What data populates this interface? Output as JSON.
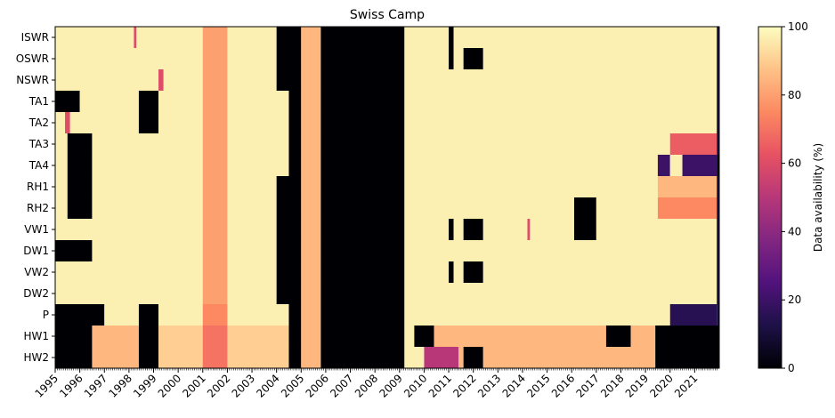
{
  "chart_data": {
    "type": "heatmap",
    "title": "Swiss Camp",
    "xlabel": "",
    "ylabel": "",
    "variables": [
      "ISWR",
      "OSWR",
      "NSWR",
      "TA1",
      "TA2",
      "TA3",
      "TA4",
      "RH1",
      "RH2",
      "VW1",
      "DW1",
      "VW2",
      "DW2",
      "P",
      "HW1",
      "HW2"
    ],
    "x_tick_labels": [
      "1995",
      "1996",
      "1997",
      "1998",
      "1999",
      "2000",
      "2001",
      "2002",
      "2003",
      "2004",
      "2005",
      "2006",
      "2007",
      "2008",
      "2009",
      "2010",
      "2011",
      "2012",
      "2013",
      "2014",
      "2015",
      "2016",
      "2017",
      "2018",
      "2019",
      "2020",
      "2021"
    ],
    "time_start": "1995-01",
    "time_end": "2021-12",
    "colorbar": {
      "label": "Data availability (%)",
      "range": [
        0,
        100
      ],
      "ticks": [
        "0",
        "20",
        "40",
        "60",
        "80",
        "100"
      ],
      "colormap": "magma",
      "colors": [
        "#000004",
        "#1d1147",
        "#51127c",
        "#822681",
        "#b73779",
        "#e75263",
        "#fc8961",
        "#fec287",
        "#fcfdbf"
      ]
    },
    "series": [
      {
        "name": "ISWR",
        "segments": [
          [
            1995.0,
            2004.0,
            97
          ],
          [
            1998.2,
            1998.3,
            60
          ],
          [
            2001.0,
            2002.0,
            80
          ],
          [
            2004.0,
            2005.0,
            0
          ],
          [
            2005.0,
            2005.8,
            85
          ],
          [
            2005.8,
            2009.2,
            0
          ],
          [
            2009.2,
            2011.0,
            97
          ],
          [
            2011.0,
            2011.2,
            0
          ],
          [
            2011.2,
            2021.9,
            97
          ],
          [
            2021.9,
            2022.0,
            10
          ]
        ]
      },
      {
        "name": "OSWR",
        "segments": [
          [
            1995.0,
            2004.0,
            97
          ],
          [
            2001.0,
            2002.0,
            80
          ],
          [
            2004.0,
            2005.0,
            0
          ],
          [
            2005.0,
            2005.8,
            85
          ],
          [
            2005.8,
            2009.2,
            0
          ],
          [
            2009.2,
            2011.0,
            97
          ],
          [
            2011.0,
            2011.2,
            0
          ],
          [
            2011.2,
            2011.6,
            97
          ],
          [
            2011.6,
            2012.4,
            0
          ],
          [
            2012.4,
            2021.9,
            97
          ],
          [
            2021.9,
            2022.0,
            10
          ]
        ]
      },
      {
        "name": "NSWR",
        "segments": [
          [
            1995.0,
            2004.0,
            97
          ],
          [
            1999.2,
            1999.4,
            60
          ],
          [
            2001.0,
            2002.0,
            80
          ],
          [
            2004.0,
            2005.0,
            0
          ],
          [
            2005.0,
            2005.8,
            85
          ],
          [
            2005.8,
            2009.2,
            0
          ],
          [
            2009.2,
            2021.9,
            97
          ],
          [
            2021.9,
            2022.0,
            10
          ]
        ]
      },
      {
        "name": "TA1",
        "segments": [
          [
            1995.0,
            1996.0,
            0
          ],
          [
            1996.0,
            1998.4,
            97
          ],
          [
            1998.4,
            1999.2,
            0
          ],
          [
            1999.2,
            2004.5,
            97
          ],
          [
            2001.0,
            2002.0,
            80
          ],
          [
            2004.5,
            2005.0,
            0
          ],
          [
            2005.0,
            2005.8,
            85
          ],
          [
            2005.8,
            2009.2,
            0
          ],
          [
            2009.2,
            2021.9,
            97
          ],
          [
            2021.9,
            2022.0,
            10
          ]
        ]
      },
      {
        "name": "TA2",
        "segments": [
          [
            1995.0,
            1998.4,
            97
          ],
          [
            1995.4,
            1995.6,
            60
          ],
          [
            1998.4,
            1999.2,
            0
          ],
          [
            1999.2,
            2004.5,
            97
          ],
          [
            2001.0,
            2002.0,
            80
          ],
          [
            2004.5,
            2005.0,
            0
          ],
          [
            2005.0,
            2005.8,
            85
          ],
          [
            2005.8,
            2009.2,
            0
          ],
          [
            2009.2,
            2021.9,
            97
          ],
          [
            2021.9,
            2022.0,
            10
          ]
        ]
      },
      {
        "name": "TA3",
        "segments": [
          [
            1995.0,
            1995.5,
            97
          ],
          [
            1995.5,
            1996.5,
            0
          ],
          [
            1996.5,
            2004.5,
            97
          ],
          [
            2001.0,
            2002.0,
            80
          ],
          [
            2004.5,
            2005.0,
            0
          ],
          [
            2005.0,
            2005.8,
            85
          ],
          [
            2005.8,
            2009.2,
            0
          ],
          [
            2009.2,
            2020.0,
            97
          ],
          [
            2020.0,
            2021.9,
            65
          ],
          [
            2021.9,
            2022.0,
            10
          ]
        ]
      },
      {
        "name": "TA4",
        "segments": [
          [
            1995.0,
            1995.5,
            97
          ],
          [
            1995.5,
            1996.5,
            0
          ],
          [
            1996.5,
            2004.5,
            97
          ],
          [
            2001.0,
            2002.0,
            80
          ],
          [
            2004.5,
            2005.0,
            0
          ],
          [
            2005.0,
            2005.8,
            85
          ],
          [
            2005.8,
            2009.2,
            0
          ],
          [
            2009.2,
            2019.5,
            97
          ],
          [
            2019.5,
            2020.0,
            20
          ],
          [
            2020.0,
            2020.5,
            97
          ],
          [
            2020.5,
            2021.9,
            20
          ],
          [
            2021.9,
            2022.0,
            0
          ]
        ]
      },
      {
        "name": "RH1",
        "segments": [
          [
            1995.0,
            1995.5,
            97
          ],
          [
            1995.5,
            1996.5,
            0
          ],
          [
            1996.5,
            2004.0,
            97
          ],
          [
            2001.0,
            2002.0,
            80
          ],
          [
            2004.0,
            2005.0,
            0
          ],
          [
            2005.0,
            2005.8,
            85
          ],
          [
            2005.8,
            2009.2,
            0
          ],
          [
            2009.2,
            2019.5,
            97
          ],
          [
            2019.5,
            2021.9,
            85
          ],
          [
            2021.9,
            2022.0,
            10
          ]
        ]
      },
      {
        "name": "RH2",
        "segments": [
          [
            1995.0,
            1995.5,
            97
          ],
          [
            1995.5,
            1996.5,
            0
          ],
          [
            1996.5,
            2004.0,
            97
          ],
          [
            2001.0,
            2002.0,
            80
          ],
          [
            2004.0,
            2005.0,
            0
          ],
          [
            2005.0,
            2005.8,
            85
          ],
          [
            2005.8,
            2009.2,
            0
          ],
          [
            2009.2,
            2016.1,
            97
          ],
          [
            2016.1,
            2017.0,
            0
          ],
          [
            2017.0,
            2019.5,
            97
          ],
          [
            2019.5,
            2021.9,
            75
          ],
          [
            2021.9,
            2022.0,
            10
          ]
        ]
      },
      {
        "name": "VW1",
        "segments": [
          [
            1995.0,
            2004.0,
            97
          ],
          [
            2001.0,
            2002.0,
            80
          ],
          [
            2004.0,
            2005.0,
            0
          ],
          [
            2005.0,
            2005.8,
            85
          ],
          [
            2005.8,
            2009.2,
            0
          ],
          [
            2009.2,
            2011.0,
            97
          ],
          [
            2011.0,
            2011.2,
            0
          ],
          [
            2011.2,
            2011.6,
            97
          ],
          [
            2011.6,
            2012.4,
            0
          ],
          [
            2012.4,
            2016.1,
            97
          ],
          [
            2014.2,
            2014.3,
            60
          ],
          [
            2016.1,
            2017.0,
            0
          ],
          [
            2017.0,
            2021.9,
            97
          ],
          [
            2021.9,
            2022.0,
            10
          ]
        ]
      },
      {
        "name": "DW1",
        "segments": [
          [
            1995.0,
            1996.5,
            0
          ],
          [
            1996.5,
            2004.0,
            97
          ],
          [
            2001.0,
            2002.0,
            80
          ],
          [
            2004.0,
            2005.0,
            0
          ],
          [
            2005.0,
            2005.8,
            85
          ],
          [
            2005.8,
            2009.2,
            0
          ],
          [
            2009.2,
            2021.9,
            97
          ],
          [
            2021.9,
            2022.0,
            10
          ]
        ]
      },
      {
        "name": "VW2",
        "segments": [
          [
            1995.0,
            2004.0,
            97
          ],
          [
            2001.0,
            2002.0,
            80
          ],
          [
            2004.0,
            2005.0,
            0
          ],
          [
            2005.0,
            2005.8,
            85
          ],
          [
            2005.8,
            2009.2,
            0
          ],
          [
            2009.2,
            2011.0,
            97
          ],
          [
            2011.0,
            2011.2,
            0
          ],
          [
            2011.2,
            2011.6,
            97
          ],
          [
            2011.6,
            2012.4,
            0
          ],
          [
            2012.4,
            2021.9,
            97
          ],
          [
            2021.9,
            2022.0,
            10
          ]
        ]
      },
      {
        "name": "DW2",
        "segments": [
          [
            1995.0,
            2004.0,
            97
          ],
          [
            2001.0,
            2002.0,
            80
          ],
          [
            2004.0,
            2005.0,
            0
          ],
          [
            2005.0,
            2005.8,
            85
          ],
          [
            2005.8,
            2009.2,
            0
          ],
          [
            2009.2,
            2021.9,
            97
          ],
          [
            2021.9,
            2022.0,
            10
          ]
        ]
      },
      {
        "name": "P",
        "segments": [
          [
            1995.0,
            1997.0,
            0
          ],
          [
            1997.0,
            1998.4,
            97
          ],
          [
            1998.4,
            1999.2,
            0
          ],
          [
            1999.2,
            2004.5,
            97
          ],
          [
            2001.0,
            2002.0,
            75
          ],
          [
            2004.5,
            2005.0,
            0
          ],
          [
            2005.0,
            2005.8,
            85
          ],
          [
            2005.8,
            2009.2,
            0
          ],
          [
            2009.2,
            2020.0,
            97
          ],
          [
            2020.0,
            2021.9,
            15
          ],
          [
            2021.9,
            2022.0,
            10
          ]
        ]
      },
      {
        "name": "HW1",
        "segments": [
          [
            1995.0,
            1996.5,
            0
          ],
          [
            1996.5,
            1998.4,
            85
          ],
          [
            1998.4,
            1999.2,
            0
          ],
          [
            1999.2,
            2004.5,
            90
          ],
          [
            2001.0,
            2002.0,
            70
          ],
          [
            2004.5,
            2005.0,
            0
          ],
          [
            2005.0,
            2005.8,
            85
          ],
          [
            2005.8,
            2009.2,
            0
          ],
          [
            2009.2,
            2009.6,
            97
          ],
          [
            2009.6,
            2010.4,
            0
          ],
          [
            2010.4,
            2017.4,
            85
          ],
          [
            2017.4,
            2018.4,
            0
          ],
          [
            2018.4,
            2019.4,
            85
          ],
          [
            2019.4,
            2022.0,
            0
          ]
        ]
      },
      {
        "name": "HW2",
        "segments": [
          [
            1995.0,
            1996.5,
            0
          ],
          [
            1996.5,
            1998.4,
            85
          ],
          [
            1998.4,
            1999.2,
            0
          ],
          [
            1999.2,
            2004.5,
            90
          ],
          [
            2001.0,
            2002.0,
            70
          ],
          [
            2004.5,
            2005.0,
            0
          ],
          [
            2005.0,
            2005.8,
            85
          ],
          [
            2005.8,
            2009.2,
            0
          ],
          [
            2009.2,
            2010.0,
            97
          ],
          [
            2010.0,
            2011.4,
            50
          ],
          [
            2011.4,
            2011.6,
            85
          ],
          [
            2011.6,
            2012.4,
            0
          ],
          [
            2012.4,
            2019.4,
            85
          ],
          [
            2019.4,
            2022.0,
            0
          ]
        ]
      }
    ]
  }
}
